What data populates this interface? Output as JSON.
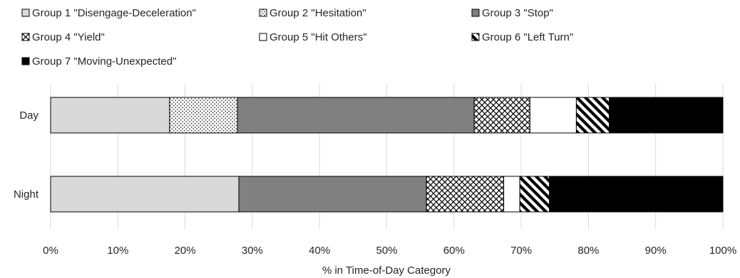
{
  "chart_data": {
    "type": "bar",
    "orientation": "horizontal",
    "stacked": true,
    "categories": [
      "Day",
      "Night"
    ],
    "series": [
      {
        "name": "Group 1 \"Disengage-Deceleration\"",
        "values": [
          17.7,
          28.0
        ],
        "pattern": "solid-light-gray"
      },
      {
        "name": "Group 2 \"Hesitation\"",
        "values": [
          10.1,
          0.0
        ],
        "pattern": "dots"
      },
      {
        "name": "Group 3 \"Stop\"",
        "values": [
          35.2,
          27.9
        ],
        "pattern": "solid-dark-gray"
      },
      {
        "name": "Group 4 \"Yield\"",
        "values": [
          8.3,
          11.5
        ],
        "pattern": "crosshatch"
      },
      {
        "name": "Group 5 \"Hit Others\"",
        "values": [
          6.9,
          2.4
        ],
        "pattern": "white"
      },
      {
        "name": "Group 6 \"Left Turn\"",
        "values": [
          4.9,
          4.4
        ],
        "pattern": "diagonal-stripes"
      },
      {
        "name": "Group 7 \"Moving-Unexpected\"",
        "values": [
          16.9,
          25.8
        ],
        "pattern": "solid-black"
      }
    ],
    "xlabel": "% in Time-of-Day Category",
    "ylabel": "",
    "xlim": [
      0,
      100
    ],
    "xticks": [
      "0%",
      "10%",
      "20%",
      "30%",
      "40%",
      "50%",
      "60%",
      "70%",
      "80%",
      "90%",
      "100%"
    ],
    "grid": "vertical",
    "legend_position": "top"
  },
  "colors": {
    "light_gray": "#d9d9d9",
    "dark_gray": "#808080",
    "black": "#000000",
    "white": "#ffffff",
    "grid": "#d9d9d9",
    "text": "#262626"
  }
}
